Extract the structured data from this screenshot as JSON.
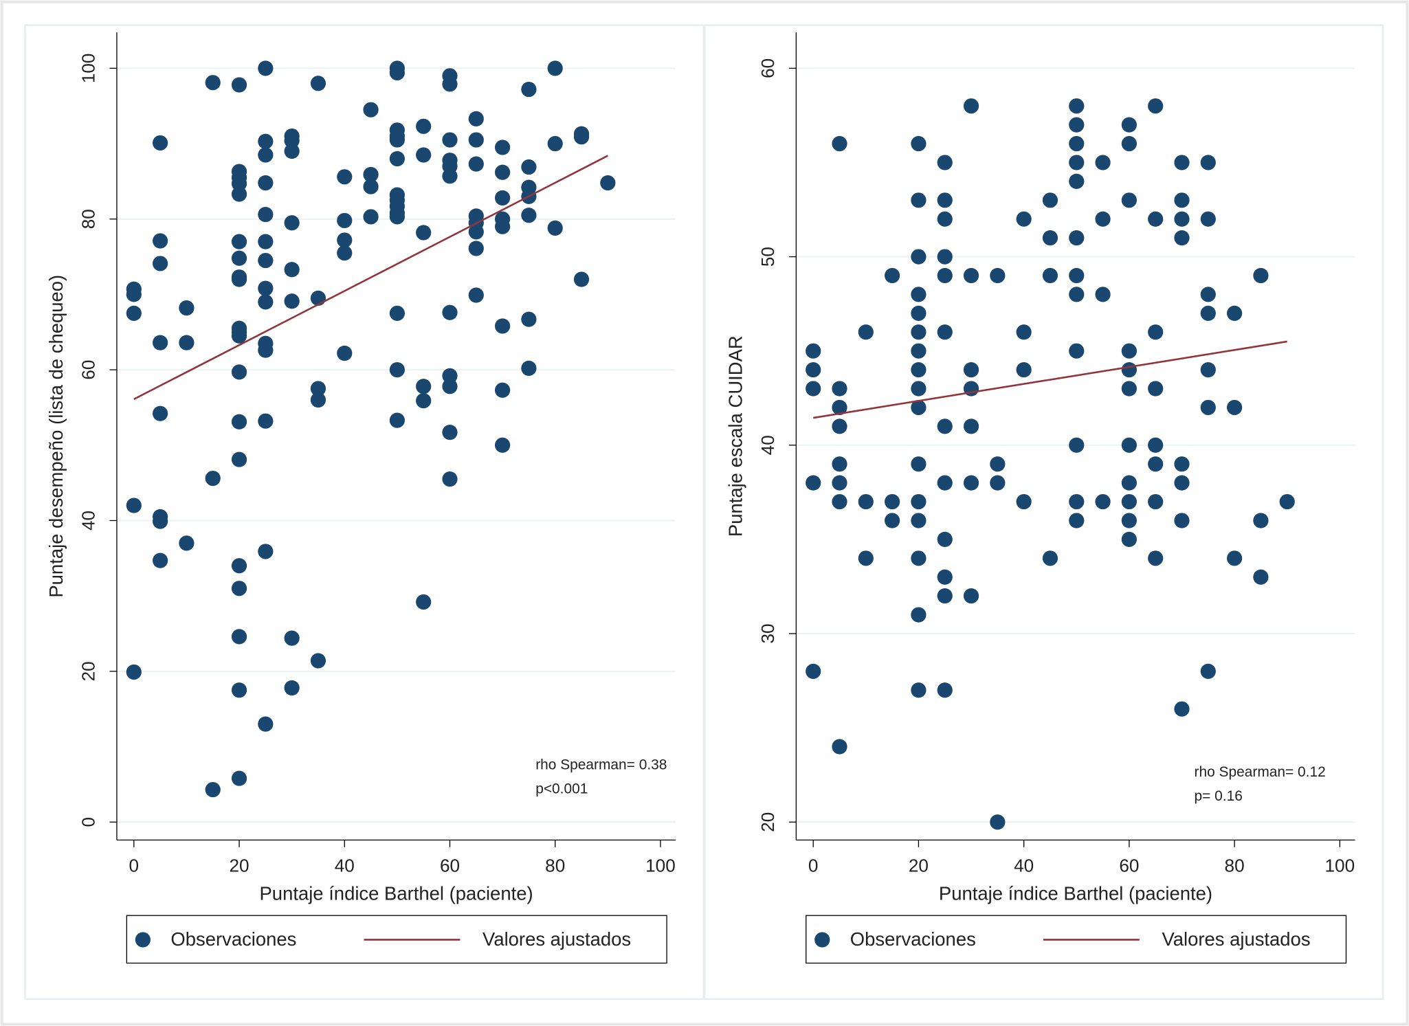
{
  "chart_data": [
    {
      "type": "scatter",
      "x_label": "Puntaje índice Barthel (paciente)",
      "y_label": "Puntaje desempeño (lista de chequeo)",
      "xlim": [
        0,
        100
      ],
      "xticks": [
        0,
        20,
        40,
        60,
        80,
        100
      ],
      "ylim": [
        0,
        100
      ],
      "yticks": [
        0,
        20,
        40,
        60,
        80,
        100
      ],
      "grid": true,
      "legend": "bottom",
      "annotations": [
        "rho Spearman= 0.38",
        "p<0.001"
      ],
      "series": [
        {
          "name": "Observaciones",
          "type": "scatter",
          "color": "#1a476f",
          "x": [
            0,
            0,
            0,
            0,
            0,
            5,
            5,
            5,
            5,
            5,
            5,
            5,
            5,
            10,
            10,
            10,
            15,
            15,
            15,
            20,
            20,
            20,
            20,
            20,
            20,
            20,
            20,
            20,
            20,
            20,
            20,
            20,
            20,
            20,
            20,
            20,
            20,
            20,
            20,
            25,
            25,
            25,
            25,
            25,
            25,
            25,
            25,
            25,
            25,
            25,
            25,
            25,
            25,
            30,
            30,
            30,
            30,
            30,
            30,
            30,
            30,
            35,
            35,
            35,
            35,
            35,
            40,
            40,
            40,
            40,
            40,
            45,
            45,
            45,
            45,
            50,
            50,
            50,
            50,
            50,
            50,
            50,
            50,
            50,
            50,
            50,
            50,
            50,
            50,
            55,
            55,
            55,
            55,
            55,
            55,
            60,
            60,
            60,
            60,
            60,
            60,
            60,
            60,
            60,
            60,
            60,
            65,
            65,
            65,
            65,
            65,
            65,
            65,
            65,
            70,
            70,
            70,
            70,
            70,
            70,
            70,
            70,
            75,
            75,
            75,
            75,
            75,
            75,
            75,
            80,
            80,
            80,
            85,
            85,
            85,
            90
          ],
          "values": [
            70.7,
            70,
            67.5,
            42,
            19.9,
            90.1,
            77.1,
            74.1,
            63.6,
            54.2,
            40.5,
            39.9,
            34.7,
            68.2,
            63.6,
            37,
            98.1,
            45.6,
            4.3,
            97.8,
            86.3,
            85.5,
            84.7,
            83.3,
            77,
            74.8,
            72.3,
            72,
            65.5,
            65,
            64.5,
            59.7,
            53.1,
            48.1,
            34,
            31,
            24.6,
            17.5,
            5.8,
            100,
            90.3,
            88.5,
            84.8,
            80.6,
            77,
            74.5,
            70.8,
            69,
            63.5,
            62.6,
            53.2,
            35.9,
            13,
            91,
            90.4,
            89,
            79.5,
            73.3,
            69.1,
            24.4,
            17.8,
            98,
            69.5,
            57.5,
            56,
            21.4,
            85.6,
            79.8,
            77.2,
            75.5,
            62.2,
            94.5,
            85.9,
            84.3,
            80.3,
            100,
            99.4,
            91.8,
            91,
            90.5,
            88,
            83.2,
            82.5,
            81.7,
            80.8,
            80.3,
            67.5,
            60,
            53.3,
            92.3,
            88.5,
            78.2,
            57.8,
            55.9,
            29.2,
            99,
            97.9,
            90.5,
            87.8,
            87,
            85.7,
            67.6,
            59.2,
            57.8,
            51.7,
            45.5,
            93.3,
            90.5,
            87.3,
            80.4,
            79.5,
            78.3,
            76.1,
            69.9,
            89.5,
            86.2,
            82.8,
            80,
            79,
            65.8,
            57.3,
            50,
            97.2,
            86.9,
            84.2,
            83,
            80.5,
            66.7,
            60.2,
            100,
            90,
            78.8,
            91.3,
            90.9,
            72,
            84.8
          ]
        },
        {
          "name": "Valores ajustados",
          "type": "line",
          "color": "#90353b",
          "x": [
            0,
            90
          ],
          "values": [
            56.1,
            88.4
          ]
        }
      ]
    },
    {
      "type": "scatter",
      "x_label": "Puntaje índice Barthel (paciente)",
      "y_label": "Puntaje escala CUIDAR",
      "xlim": [
        0,
        100
      ],
      "xticks": [
        0,
        20,
        40,
        60,
        80,
        100
      ],
      "ylim": [
        20,
        60
      ],
      "yticks": [
        20,
        30,
        40,
        50,
        60
      ],
      "grid": true,
      "legend": "bottom",
      "annotations": [
        "rho Spearman= 0.12",
        "p= 0.16"
      ],
      "series": [
        {
          "name": "Observaciones",
          "type": "scatter",
          "color": "#1a476f",
          "x": [
            0,
            0,
            0,
            0,
            0,
            5,
            5,
            5,
            5,
            5,
            5,
            5,
            5,
            10,
            10,
            10,
            15,
            15,
            15,
            20,
            20,
            20,
            20,
            20,
            20,
            20,
            20,
            20,
            20,
            20,
            20,
            20,
            20,
            20,
            20,
            25,
            25,
            25,
            25,
            25,
            25,
            25,
            25,
            25,
            25,
            25,
            25,
            30,
            30,
            30,
            30,
            30,
            30,
            30,
            35,
            35,
            35,
            35,
            40,
            40,
            40,
            40,
            45,
            45,
            45,
            45,
            50,
            50,
            50,
            50,
            50,
            50,
            50,
            50,
            50,
            50,
            50,
            50,
            55,
            55,
            55,
            55,
            60,
            60,
            60,
            60,
            60,
            60,
            60,
            60,
            60,
            60,
            60,
            65,
            65,
            65,
            65,
            65,
            65,
            65,
            65,
            70,
            70,
            70,
            70,
            70,
            70,
            70,
            70,
            75,
            75,
            75,
            75,
            75,
            75,
            75,
            80,
            80,
            80,
            85,
            85,
            85,
            90
          ],
          "values": [
            45,
            44,
            43,
            38,
            28,
            56,
            43,
            42,
            41,
            39,
            38,
            37,
            24,
            46,
            37,
            34,
            49,
            37,
            36,
            56,
            53,
            50,
            48,
            47,
            46,
            45,
            44,
            43,
            42,
            39,
            37,
            36,
            34,
            31,
            27,
            55,
            53,
            52,
            50,
            49,
            46,
            41,
            38,
            35,
            33,
            32,
            27,
            58,
            49,
            44,
            43,
            41,
            38,
            32,
            49,
            39,
            38,
            20,
            52,
            46,
            44,
            37,
            53,
            51,
            49,
            34,
            58,
            57,
            56,
            55,
            54,
            51,
            49,
            48,
            45,
            40,
            37,
            36,
            55,
            52,
            48,
            37,
            57,
            56,
            53,
            45,
            44,
            43,
            40,
            38,
            37,
            36,
            35,
            58,
            52,
            46,
            43,
            40,
            39,
            37,
            34,
            55,
            53,
            52,
            51,
            39,
            38,
            36,
            26,
            55,
            52,
            48,
            47,
            44,
            42,
            28,
            47,
            42,
            34,
            49,
            36,
            33,
            37
          ]
        },
        {
          "name": "Valores ajustados",
          "type": "line",
          "color": "#90353b",
          "x": [
            0,
            90
          ],
          "values": [
            41.45,
            45.5
          ]
        }
      ]
    }
  ]
}
